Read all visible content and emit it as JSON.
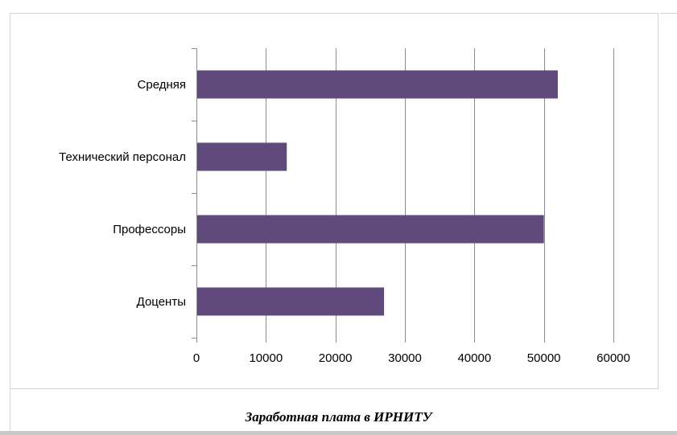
{
  "chart_data": {
    "type": "bar",
    "orientation": "horizontal",
    "title": "Заработная плата в ИРНИТУ",
    "xlabel": "",
    "ylabel": "",
    "categories": [
      "Доценты",
      "Профессоры",
      "Технический персонал",
      "Средняя"
    ],
    "values": [
      27000,
      50000,
      13000,
      52000
    ],
    "xlim": [
      0,
      60000
    ],
    "xticks": [
      "0",
      "10000",
      "20000",
      "30000",
      "40000",
      "50000",
      "60000"
    ],
    "grid": true,
    "legend": "none",
    "bar_color": "#604a7b",
    "grid_color": "#8c8c8c"
  }
}
